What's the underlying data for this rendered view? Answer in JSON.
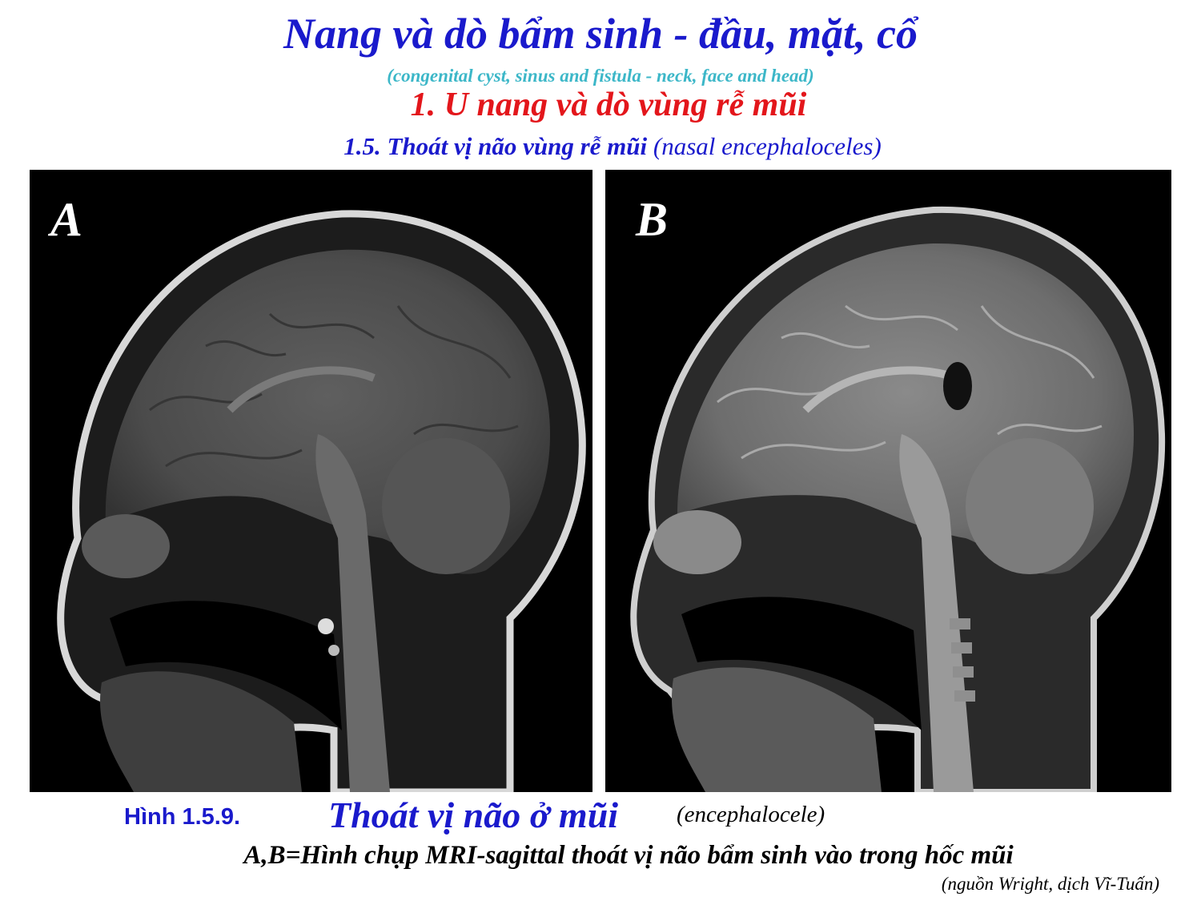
{
  "header": {
    "title": "Nang và dò bẩm sinh - đầu, mặt, cổ",
    "subtitle_en": "(congenital cyst, sinus and fistula - neck, face and head)",
    "section": "1. U nang và dò vùng rễ mũi",
    "subsection_vi": "1.5. Thoát vị não vùng rễ mũi",
    "subsection_en": "(nasal encephaloceles)"
  },
  "figure": {
    "panels": [
      {
        "label": "A",
        "image": "mri-sagittal-t1-head"
      },
      {
        "label": "B",
        "image": "mri-sagittal-contrast-head"
      }
    ],
    "number": "Hình 1.5.9.",
    "title": "Thoát vị não ở mũi",
    "title_en": "(encephalocele)",
    "caption": "A,B=Hình chụp MRI-sagittal thoát vị não bẩm sinh vào trong hốc mũi",
    "source": "(nguồn Wright, dịch Vĩ-Tuấn)"
  },
  "colors": {
    "title": "#1a1acc",
    "subtitle_en": "#3cb7c8",
    "section": "#e3161b",
    "panel_bg": "#000000"
  }
}
